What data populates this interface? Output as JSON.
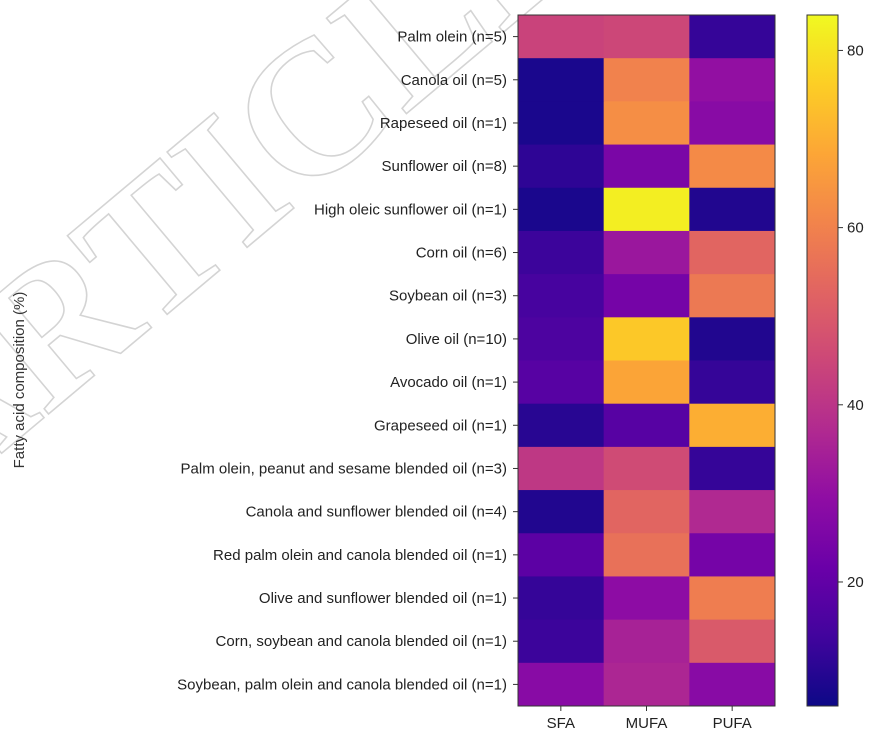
{
  "watermark": "ARTICLE",
  "chart_data": {
    "type": "heatmap",
    "ylabel": "Fatty acid composition (%)",
    "x_categories": [
      "SFA",
      "MUFA",
      "PUFA"
    ],
    "y_categories": [
      "Palm olein (n=5)",
      "Canola oil (n=5)",
      "Rapeseed oil (n=1)",
      "Sunflower oil (n=8)",
      "High oleic sunflower oil (n=1)",
      "Corn oil (n=6)",
      "Soybean oil (n=3)",
      "Olive oil (n=10)",
      "Avocado oil (n=1)",
      "Grapeseed oil (n=1)",
      "Palm olein, peanut and sesame blended oil (n=3)",
      "Canola and sunflower blended oil (n=4)",
      "Red palm olein and canola blended oil (n=1)",
      "Olive and sunflower blended oil (n=1)",
      "Corn, soybean and canola blended oil (n=1)",
      "Soybean, palm olein and canola blended oil (n=1)"
    ],
    "values": [
      [
        44,
        45,
        12
      ],
      [
        8,
        60,
        30
      ],
      [
        8,
        63,
        28
      ],
      [
        11,
        25,
        62
      ],
      [
        8,
        82,
        9
      ],
      [
        13,
        32,
        53
      ],
      [
        15,
        24,
        58
      ],
      [
        16,
        75,
        9
      ],
      [
        18,
        68,
        12
      ],
      [
        10,
        18,
        70
      ],
      [
        41,
        46,
        12
      ],
      [
        9,
        53,
        37
      ],
      [
        19,
        56,
        24
      ],
      [
        12,
        29,
        59
      ],
      [
        13,
        35,
        50
      ],
      [
        28,
        36,
        28
      ]
    ],
    "colorbar": {
      "colormap": "plasma",
      "range": [
        6,
        84
      ],
      "ticks": [
        20,
        40,
        60,
        80
      ]
    },
    "grid": false,
    "legend": "colorbar-right"
  }
}
